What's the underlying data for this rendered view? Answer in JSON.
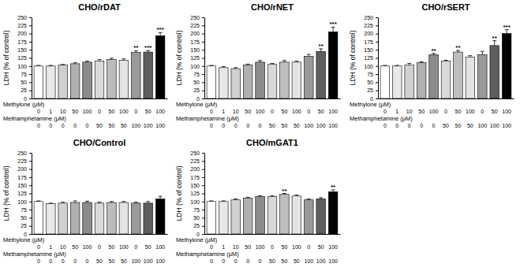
{
  "chart_data": [
    {
      "type": "bar",
      "title": "CHO/rDAT",
      "y_label": "LDH (% of control)",
      "category_titles": [
        "Methylone (μM)",
        "Methamphetamine (μM)"
      ],
      "categories": [
        [
          0,
          0
        ],
        [
          1,
          0
        ],
        [
          10,
          0
        ],
        [
          50,
          0
        ],
        [
          100,
          0
        ],
        [
          0,
          50
        ],
        [
          50,
          50
        ],
        [
          100,
          50
        ],
        [
          0,
          100
        ],
        [
          50,
          100
        ],
        [
          100,
          100
        ]
      ],
      "values": [
        100,
        100,
        103,
        107,
        112,
        115,
        120,
        118,
        142,
        143,
        193
      ],
      "errors": [
        2,
        2,
        2,
        3,
        3,
        5,
        4,
        4,
        5,
        5,
        10
      ],
      "colors": [
        "#ffffff",
        "#e8e8e8",
        "#d0d0d0",
        "#b0b0b0",
        "#8c8c8c",
        "#d9d9d9",
        "#bdbdbd",
        "#e3e3e3",
        "#9a9a9a",
        "#5e5e5e",
        "#000000"
      ],
      "annotations": [
        {
          "index": 8,
          "text": "**"
        },
        {
          "index": 9,
          "text": "***"
        },
        {
          "index": 10,
          "text": "***"
        }
      ],
      "ylim": [
        0,
        250
      ],
      "yticks": [
        0,
        25,
        50,
        75,
        100,
        125,
        150,
        175,
        200,
        225,
        250
      ]
    },
    {
      "type": "bar",
      "title": "CHO/rNET",
      "y_label": "LDH (% of control)",
      "category_titles": [
        "Methylone (μM)",
        "Methamphetamine (μM)"
      ],
      "categories": [
        [
          0,
          0
        ],
        [
          1,
          0
        ],
        [
          10,
          0
        ],
        [
          50,
          0
        ],
        [
          100,
          0
        ],
        [
          0,
          50
        ],
        [
          50,
          50
        ],
        [
          100,
          50
        ],
        [
          0,
          100
        ],
        [
          50,
          100
        ],
        [
          100,
          100
        ]
      ],
      "values": [
        100,
        95,
        92,
        103,
        112,
        105,
        112,
        112,
        130,
        145,
        205
      ],
      "errors": [
        2,
        3,
        3,
        3,
        5,
        3,
        5,
        3,
        6,
        8,
        15
      ],
      "colors": [
        "#ffffff",
        "#e8e8e8",
        "#d0d0d0",
        "#b0b0b0",
        "#8c8c8c",
        "#d9d9d9",
        "#bdbdbd",
        "#e3e3e3",
        "#9a9a9a",
        "#5e5e5e",
        "#000000"
      ],
      "annotations": [
        {
          "index": 9,
          "text": "**"
        },
        {
          "index": 10,
          "text": "***"
        }
      ],
      "ylim": [
        0,
        250
      ],
      "yticks": [
        0,
        25,
        50,
        75,
        100,
        125,
        150,
        175,
        200,
        225,
        250
      ]
    },
    {
      "type": "bar",
      "title": "CHO/rSERT",
      "y_label": "LDH (% of control)",
      "category_titles": [
        "Methylone (μM)",
        "Methamphetamine (μM)"
      ],
      "categories": [
        [
          0,
          0
        ],
        [
          1,
          0
        ],
        [
          10,
          0
        ],
        [
          50,
          0
        ],
        [
          100,
          0
        ],
        [
          0,
          50
        ],
        [
          50,
          50
        ],
        [
          100,
          50
        ],
        [
          0,
          100
        ],
        [
          50,
          100
        ],
        [
          100,
          100
        ]
      ],
      "values": [
        100,
        100,
        103,
        110,
        135,
        115,
        143,
        128,
        135,
        163,
        200
      ],
      "errors": [
        2,
        2,
        5,
        3,
        4,
        3,
        5,
        4,
        10,
        15,
        12
      ],
      "colors": [
        "#ffffff",
        "#e8e8e8",
        "#d0d0d0",
        "#b0b0b0",
        "#8c8c8c",
        "#d9d9d9",
        "#bdbdbd",
        "#e3e3e3",
        "#9a9a9a",
        "#5e5e5e",
        "#000000"
      ],
      "annotations": [
        {
          "index": 4,
          "text": "**"
        },
        {
          "index": 6,
          "text": "**"
        },
        {
          "index": 9,
          "text": "**"
        },
        {
          "index": 10,
          "text": "***"
        }
      ],
      "ylim": [
        0,
        250
      ],
      "yticks": [
        0,
        25,
        50,
        75,
        100,
        125,
        150,
        175,
        200,
        225,
        250
      ]
    },
    {
      "type": "bar",
      "title": "CHO/Control",
      "y_label": "LDH (% of control)",
      "category_titles": [
        "Methylone (μM)",
        "Methamphetamine (μM)"
      ],
      "categories": [
        [
          0,
          0
        ],
        [
          1,
          0
        ],
        [
          10,
          0
        ],
        [
          50,
          0
        ],
        [
          100,
          0
        ],
        [
          0,
          50
        ],
        [
          50,
          50
        ],
        [
          100,
          50
        ],
        [
          0,
          100
        ],
        [
          50,
          100
        ],
        [
          100,
          100
        ]
      ],
      "values": [
        100,
        93,
        95,
        97,
        97,
        95,
        97,
        97,
        95,
        95,
        108
      ],
      "errors": [
        2,
        2,
        3,
        5,
        4,
        3,
        3,
        3,
        3,
        5,
        8
      ],
      "colors": [
        "#ffffff",
        "#e8e8e8",
        "#d0d0d0",
        "#b0b0b0",
        "#8c8c8c",
        "#d9d9d9",
        "#bdbdbd",
        "#e3e3e3",
        "#9a9a9a",
        "#5e5e5e",
        "#000000"
      ],
      "annotations": [],
      "ylim": [
        0,
        250
      ],
      "yticks": [
        0,
        25,
        50,
        75,
        100,
        125,
        150,
        175,
        200,
        225,
        250
      ]
    },
    {
      "type": "bar",
      "title": "CHO/mGAT1",
      "y_label": "LDH (% of control)",
      "category_titles": [
        "Methylone (μM)",
        "Methamphetamine (μM)"
      ],
      "categories": [
        [
          0,
          0
        ],
        [
          1,
          0
        ],
        [
          10,
          0
        ],
        [
          50,
          0
        ],
        [
          100,
          0
        ],
        [
          0,
          50
        ],
        [
          50,
          50
        ],
        [
          100,
          50
        ],
        [
          0,
          100
        ],
        [
          50,
          100
        ],
        [
          100,
          100
        ]
      ],
      "values": [
        100,
        100,
        105,
        110,
        115,
        115,
        122,
        117,
        105,
        108,
        130
      ],
      "errors": [
        2,
        2,
        3,
        3,
        3,
        3,
        3,
        3,
        3,
        4,
        6
      ],
      "colors": [
        "#ffffff",
        "#e8e8e8",
        "#d0d0d0",
        "#b0b0b0",
        "#8c8c8c",
        "#d9d9d9",
        "#bdbdbd",
        "#e3e3e3",
        "#9a9a9a",
        "#5e5e5e",
        "#000000"
      ],
      "annotations": [
        {
          "index": 6,
          "text": "**"
        },
        {
          "index": 10,
          "text": "**"
        }
      ],
      "ylim": [
        0,
        250
      ],
      "yticks": [
        0,
        25,
        50,
        75,
        100,
        125,
        150,
        175,
        200,
        225,
        250
      ]
    }
  ]
}
